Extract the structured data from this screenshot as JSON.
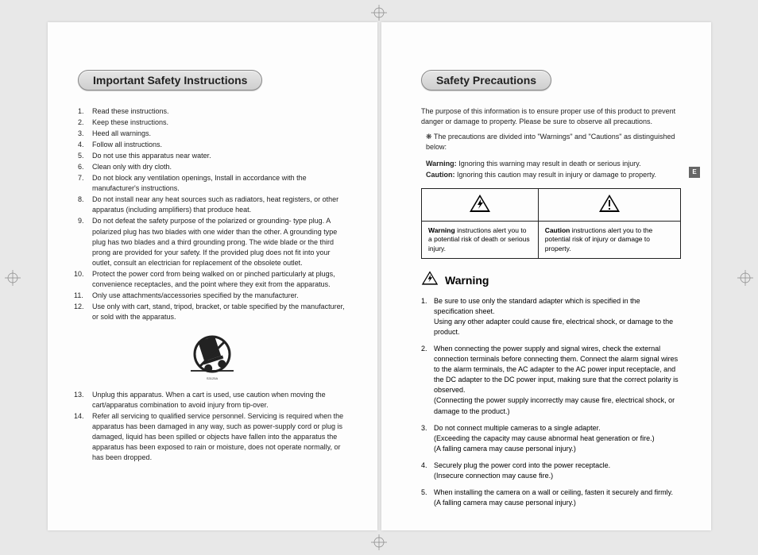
{
  "left": {
    "heading": "Important Safety Instructions",
    "items": [
      "Read these instructions.",
      "Keep these instructions.",
      "Heed all warnings.",
      "Follow all instructions.",
      "Do not use this apparatus near water.",
      "Clean only with dry cloth.",
      "Do not block any ventilation openings, Install in accordance with the manufacturer's instructions.",
      "Do not install near any heat sources such as radiators, heat registers, or other apparatus (including amplifiers) that produce heat.",
      "Do not defeat the safety purpose of the polarized or grounding- type plug. A polarized plug has two blades with one wider than the other. A grounding type plug has two blades and a third grounding prong. The wide blade or the third prong are provided for your safety. If the provided plug does not fit into your outlet, consult an electrician for replacement of the obsolete outlet.",
      "Protect the power cord from being walked on or pinched particularly at plugs, convenience receptacles, and the point where they exit from the apparatus.",
      "Only use attachments/accessories specified by the manufacturer.",
      "Use only with cart, stand, tripod, bracket, or table specified by the manufacturer, or sold with the apparatus."
    ],
    "items2": [
      "Unplug this apparatus. When a cart is used, use caution when moving the cart/apparatus combination to avoid injury from tip-over.",
      "Refer all servicing to qualified service personnel. Servicing is required when the apparatus has been damaged in any way, such as power-supply cord or plug is damaged, liquid has been spilled or objects have fallen into the apparatus the apparatus has been exposed to rain or moisture, does not operate normally, or has been dropped."
    ]
  },
  "right": {
    "heading": "Safety Precautions",
    "intro": "The purpose of this information is to ensure proper use of this product to prevent danger or damage to property. Please be sure to observe all precautions.",
    "sub": "❋ The precautions are divided into \"Warnings\" and \"Cautions\" as distinguished below:",
    "def_warning_label": "Warning:",
    "def_warning": "Ignoring this warning may result in death or serious injury.",
    "def_caution_label": "Caution:",
    "def_caution": "Ignoring this caution may result in injury or damage to property.",
    "box_warning_label": "Warning",
    "box_warning_text": "instructions alert you to a potential risk of death or serious injury.",
    "box_caution_label": "Caution",
    "box_caution_text": "instructions alert you to the potential risk of injury or damage to property.",
    "section_heading": "Warning",
    "warn_items": [
      "Be sure to use only the standard adapter which is specified in the specification sheet.\nUsing any other adapter could cause fire, electrical shock, or damage to the product.",
      "When connecting the power supply and signal wires, check the external connection terminals before connecting them. Connect the alarm signal wires to the alarm terminals, the AC adapter to the AC power input receptacle, and the DC adapter to the DC power input, making sure that the correct polarity is observed.\n(Connecting the power supply incorrectly may cause fire, electrical shock, or damage to the product.)",
      "Do not connect multiple cameras to a single adapter.\n(Exceeding the capacity may cause abnormal heat generation or fire.)\n(A falling camera may cause personal injury.)",
      "Securely plug the power cord into the power receptacle.\n(Insecure connection may cause fire.)",
      "When installing the camera on a wall or ceiling, fasten it securely and firmly. (A falling camera may cause personal injury.)"
    ],
    "side_tab": "E"
  }
}
